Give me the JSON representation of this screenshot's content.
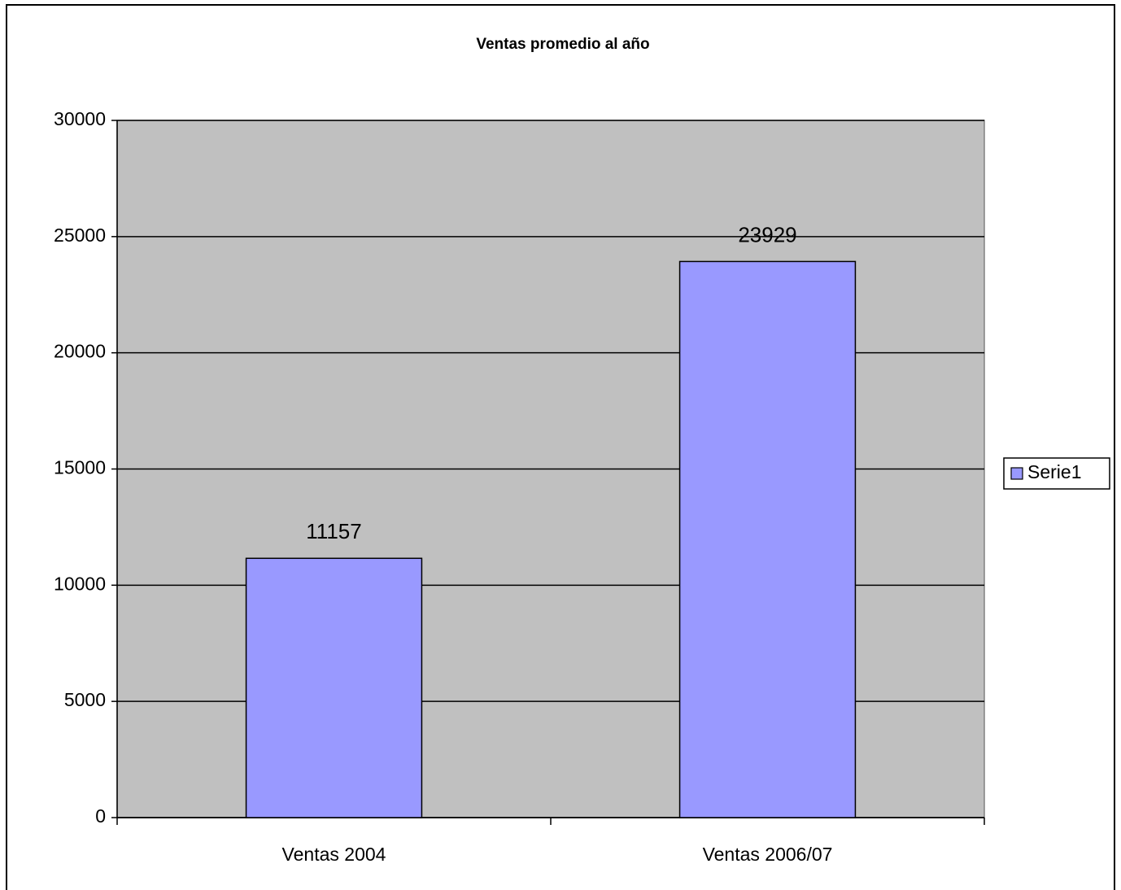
{
  "chart_data": {
    "type": "bar",
    "title": "Ventas promedio al año",
    "categories": [
      "Ventas 2004",
      "Ventas 2006/07"
    ],
    "series": [
      {
        "name": "Serie1",
        "color": "#9999ff",
        "values": [
          11157,
          23929
        ]
      }
    ],
    "ylim": [
      0,
      30000
    ],
    "yticks": [
      0,
      5000,
      10000,
      15000,
      20000,
      25000,
      30000
    ],
    "grid": true,
    "legend": "right",
    "data_labels": true
  }
}
